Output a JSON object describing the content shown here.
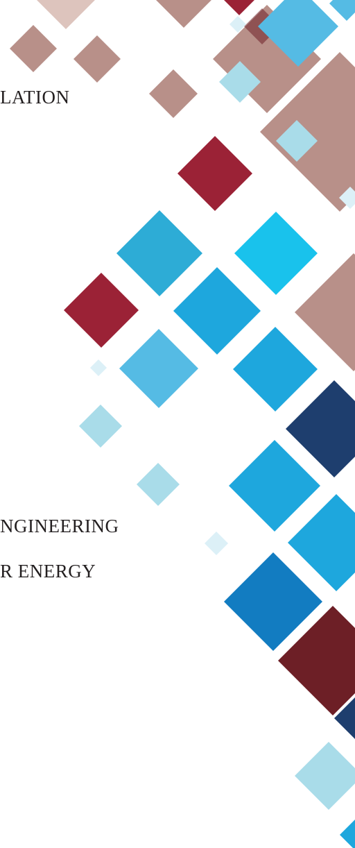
{
  "cover": {
    "title_fragment": "LATION",
    "subtitle_line_1": "NGINEERING",
    "subtitle_line_2": "R ENERGY"
  },
  "palette": {
    "rose": "#b89089",
    "rose_light": "#ddc4bd",
    "crimson": "#9b2236",
    "maroon": "#6d1f26",
    "navy": "#1e3e6e",
    "cobalt": "#127cc1",
    "sky": "#1ea7dd",
    "cyan": "#19c2ec",
    "steel_blue": "#2dacd6",
    "light_blue": "#55bbe4",
    "pale_blue": "#a9dce9",
    "ice": "#dcf0f7"
  }
}
